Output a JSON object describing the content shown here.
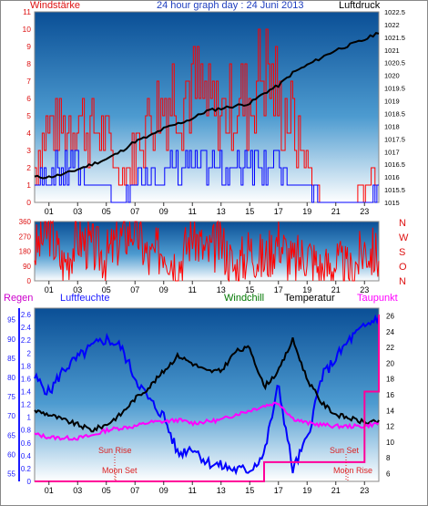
{
  "chart_data": [
    {
      "type": "line",
      "title": "24 hour graph day : 24 Juni 2013",
      "ylabel": "Windstärke",
      "y2label": "Luftdruck",
      "xticks": [
        "01",
        "03",
        "05",
        "07",
        "09",
        "11",
        "13",
        "15",
        "17",
        "19",
        "21",
        "23"
      ],
      "ylim": [
        0,
        11
      ],
      "yticks": [
        "0",
        "1",
        "2",
        "3",
        "4",
        "5",
        "6",
        "7",
        "8",
        "9",
        "10",
        "11"
      ],
      "y2lim": [
        1015,
        1022.5
      ],
      "y2ticks": [
        "1015",
        "1015.5",
        "1016",
        "1016.5",
        "1017",
        "1017.5",
        "1018",
        "1018.5",
        "1019",
        "1019.5",
        "1020",
        "1020.5",
        "1021",
        "1021.5",
        "1022",
        "1022.5"
      ],
      "colors": {
        "gust": "#ff0000",
        "average": "#0000ff",
        "pressure": "#000000",
        "axis_left": "#dd1111",
        "axis_right": "#000000"
      },
      "series": [
        {
          "x": [
            0,
            1,
            2,
            3,
            4,
            5,
            6,
            7,
            8,
            9,
            10,
            11,
            12,
            13,
            14,
            15,
            16,
            17,
            18,
            19,
            20,
            21,
            22,
            23,
            24
          ],
          "values": [
            1016.0,
            1016.0,
            1016.1,
            1016.3,
            1016.5,
            1016.7,
            1017.0,
            1017.4,
            1017.6,
            1017.9,
            1018.1,
            1018.3,
            1018.6,
            1018.7,
            1018.8,
            1018.9,
            1019.3,
            1019.6,
            1020.1,
            1020.4,
            1020.7,
            1021.0,
            1021.2,
            1021.4,
            1021.7
          ]
        },
        {
          "x": [
            0,
            1,
            2,
            3,
            4,
            5,
            6,
            7,
            8,
            9,
            10,
            11,
            12,
            13,
            14,
            15,
            16,
            17,
            18,
            19,
            20,
            21,
            22,
            23,
            24
          ],
          "values": [
            3,
            6,
            6,
            7,
            6,
            5,
            2,
            4,
            7,
            8,
            9,
            9,
            8,
            7,
            8,
            8,
            11,
            8,
            6,
            3,
            0,
            0,
            0,
            1,
            3
          ]
        },
        {
          "x": [
            0,
            1,
            2,
            3,
            4,
            5,
            6,
            7,
            8,
            9,
            10,
            11,
            12,
            13,
            14,
            15,
            16,
            17,
            18,
            19,
            20,
            21,
            22,
            23,
            24
          ],
          "values": [
            1,
            2,
            2,
            2,
            1,
            1,
            0,
            1,
            2,
            2,
            2,
            2,
            2,
            2,
            2,
            3,
            3,
            2,
            1,
            1,
            0,
            0,
            0,
            0,
            1
          ]
        }
      ]
    },
    {
      "type": "scatter",
      "ylabel": "",
      "xticks": [
        "01",
        "03",
        "05",
        "07",
        "09",
        "11",
        "13",
        "15",
        "17",
        "19",
        "21",
        "23"
      ],
      "ylim": [
        0,
        360
      ],
      "yticks": [
        "0",
        "45",
        "90",
        "135",
        "180",
        "225",
        "270",
        "315",
        "360"
      ],
      "compass": [
        "N",
        "W",
        "S",
        "O",
        "N"
      ],
      "colors": {
        "direction": "#ff0000",
        "axis": "#dd1111"
      },
      "series": [
        {
          "x": [
            0,
            1,
            2,
            3,
            4,
            5,
            6,
            7,
            8,
            9,
            10,
            11,
            12,
            13,
            14,
            15,
            16,
            17,
            18,
            19,
            20,
            21,
            22,
            23,
            24
          ],
          "values": [
            180,
            320,
            90,
            270,
            200,
            150,
            260,
            330,
            120,
            220,
            90,
            300,
            160,
            240,
            60,
            200,
            120,
            260,
            100,
            180,
            60,
            110,
            40,
            200,
            150
          ]
        }
      ]
    },
    {
      "type": "line",
      "legend": [
        "Regen",
        "Luftfeuchte",
        "Windchill",
        "Temperatur",
        "Taupunkt"
      ],
      "xticks": [
        "01",
        "03",
        "05",
        "07",
        "09",
        "11",
        "13",
        "15",
        "17",
        "19",
        "21",
        "23"
      ],
      "humidity_ticks": [
        "55",
        "60",
        "65",
        "70",
        "75",
        "80",
        "85",
        "90",
        "95"
      ],
      "humidity_lim": [
        53,
        98
      ],
      "rain_ticks": [
        "0",
        "0.2",
        "0.4",
        "0.6",
        "0.8",
        "1",
        "1.2",
        "1.4",
        "1.6",
        "1.8",
        "2",
        "2.2",
        "2.4",
        "2.6"
      ],
      "rain_lim": [
        0,
        2.7
      ],
      "temp_ticks": [
        "6",
        "8",
        "10",
        "12",
        "14",
        "16",
        "18",
        "20",
        "22",
        "24",
        "26"
      ],
      "temp_lim": [
        5,
        27
      ],
      "annotations": [
        "Sun Rise",
        "Sun Set",
        "Moon Set",
        "Moon Rise"
      ],
      "colors": {
        "rain": "#ff0099",
        "humidity": "#0000ff",
        "temperature": "#000000",
        "dewpoint": "#ff00ff",
        "axis_left": "#1a1aff",
        "axis_right": "#000000"
      },
      "series": [
        {
          "x": [
            0,
            1,
            2,
            3,
            4,
            5,
            6,
            7,
            8,
            9,
            10,
            11,
            12,
            13,
            14,
            15,
            16,
            17,
            18,
            19,
            20,
            21,
            22,
            23,
            24
          ],
          "values": [
            80,
            76,
            82,
            85,
            88,
            90,
            88,
            80,
            74,
            70,
            60,
            62,
            58,
            57,
            56,
            56,
            60,
            78,
            56,
            64,
            80,
            85,
            90,
            93,
            96
          ]
        },
        {
          "x": [
            0,
            1,
            2,
            3,
            4,
            5,
            6,
            7,
            8,
            9,
            10,
            11,
            12,
            13,
            14,
            15,
            16,
            17,
            18,
            19,
            20,
            21,
            22,
            23,
            24
          ],
          "values": [
            14,
            13.5,
            12.8,
            12.2,
            11.5,
            12.2,
            13.5,
            15.5,
            17,
            19,
            21,
            20,
            19,
            19,
            21.5,
            22,
            17,
            19,
            23,
            18,
            15,
            13.5,
            13,
            12.5,
            12.5
          ]
        },
        {
          "x": [
            0,
            1,
            2,
            3,
            4,
            5,
            6,
            7,
            8,
            9,
            10,
            11,
            12,
            13,
            14,
            15,
            16,
            17,
            18,
            19,
            20,
            21,
            22,
            23,
            24
          ],
          "values": [
            11,
            10.6,
            10.5,
            10.5,
            10.8,
            11.5,
            11.8,
            12,
            12.5,
            12.6,
            12.8,
            12.4,
            12.6,
            12.8,
            13.5,
            14,
            14.6,
            15,
            13,
            12.4,
            12.2,
            12,
            12,
            12,
            12.4
          ]
        },
        {
          "x": [
            0,
            1,
            2,
            3,
            4,
            5,
            6,
            7,
            8,
            9,
            10,
            11,
            12,
            13,
            14,
            15,
            16,
            17,
            18,
            19,
            20,
            21,
            22,
            23,
            24
          ],
          "values": [
            0,
            0,
            0,
            0,
            0,
            0,
            0,
            0,
            0,
            0,
            0,
            0,
            0,
            0,
            0,
            0,
            0.3,
            0.3,
            0.3,
            0.3,
            0.3,
            0.3,
            0.3,
            1.4,
            2.6
          ]
        }
      ]
    }
  ]
}
